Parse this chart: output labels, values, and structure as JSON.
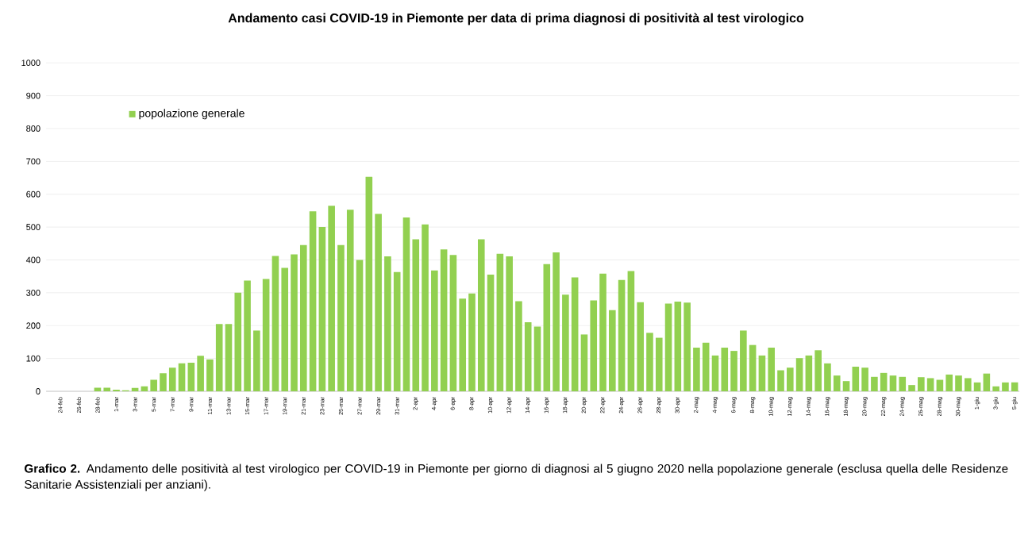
{
  "chart_data": {
    "type": "bar",
    "title": "Andamento casi COVID-19 in Piemonte per data di prima diagnosi di positività al test virologico",
    "categories": [
      null,
      "24-feb",
      null,
      "26-feb",
      null,
      "28-feb",
      null,
      "1-mar",
      null,
      "3-mar",
      null,
      "5-mar",
      null,
      "7-mar",
      null,
      "9-mar",
      null,
      "11-mar",
      null,
      "13-mar",
      null,
      "15-mar",
      null,
      "17-mar",
      null,
      "19-mar",
      null,
      "21-mar",
      null,
      "23-mar",
      null,
      "25-mar",
      null,
      "27-mar",
      null,
      "29-mar",
      null,
      "31-mar",
      null,
      "2-apr",
      null,
      "4-apr",
      null,
      "6-apr",
      null,
      "8-apr",
      null,
      "10-apr",
      null,
      "12-apr",
      null,
      "14-apr",
      null,
      "16-apr",
      null,
      "18-apr",
      null,
      "20-apr",
      null,
      "22-apr",
      null,
      "24-apr",
      null,
      "26-apr",
      null,
      "28-apr",
      null,
      "30-apr",
      null,
      "2-mag",
      null,
      "4-mag",
      null,
      "6-mag",
      null,
      "8-mag",
      null,
      "10-mag",
      null,
      "12-mag",
      null,
      "14-mag",
      null,
      "16-mag",
      null,
      "18-mag",
      null,
      "20-mag",
      null,
      "22-mag",
      null,
      "24-mag",
      null,
      "26-mag",
      null,
      "28-mag",
      null,
      "30-mag",
      null,
      "1-giu",
      null,
      "3-giu",
      null,
      "5-giu"
    ],
    "series": [
      {
        "name": "popolazione generale",
        "color": "#92d050",
        "values": [
          0,
          0,
          0,
          0,
          0,
          11,
          11,
          5,
          3,
          10,
          15,
          35,
          55,
          72,
          85,
          87,
          108,
          97,
          205,
          205,
          300,
          337,
          185,
          342,
          412,
          376,
          417,
          445,
          548,
          500,
          565,
          445,
          553,
          400,
          653,
          540,
          411,
          363,
          529,
          463,
          508,
          368,
          432,
          415,
          282,
          298,
          463,
          355,
          419,
          411,
          274,
          210,
          197,
          387,
          423,
          294,
          347,
          173,
          277,
          358,
          247,
          339,
          366,
          271,
          178,
          163,
          267,
          273,
          270,
          133,
          148,
          109,
          133,
          123,
          185,
          141,
          109,
          133,
          64,
          72,
          101,
          109,
          125,
          85,
          48,
          31,
          75,
          72,
          44,
          56,
          48,
          44,
          19,
          43,
          40,
          35,
          51,
          48,
          40,
          27,
          54,
          15,
          27,
          27
        ]
      }
    ],
    "ylim": [
      0,
      1000
    ],
    "yticks": [
      0,
      100,
      200,
      300,
      400,
      500,
      600,
      700,
      800,
      900,
      1000
    ],
    "grid": "y",
    "legend": "top left",
    "annotations": [
      "**Grafico 2.** Andamento delle positività al test virologico per COVID-19 in Piemonte per giorno di diagnosi al 5 giugno 2020 nella popolazione generale (esclusa quella delle Residenze Sanitarie Assistenziali per anziani)."
    ]
  }
}
